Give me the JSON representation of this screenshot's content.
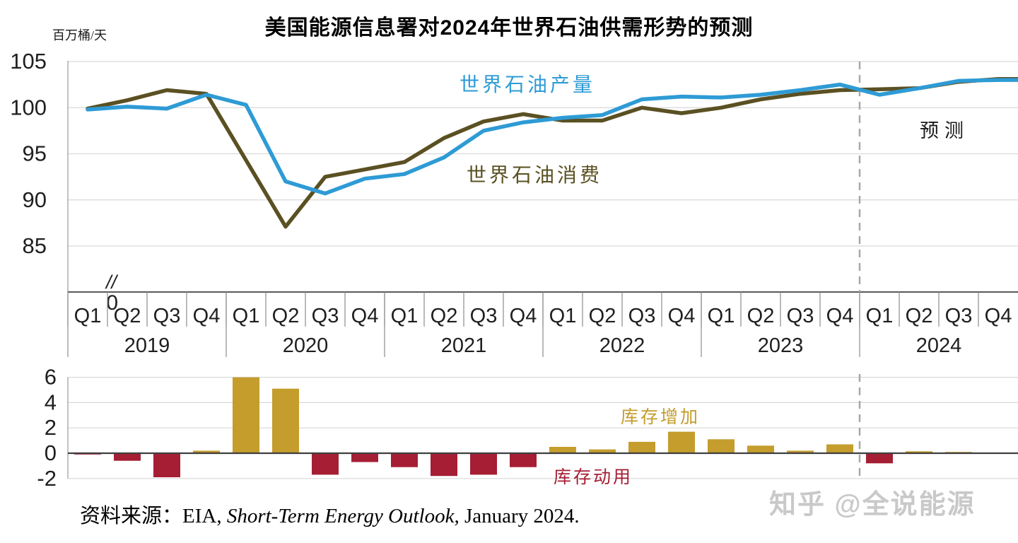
{
  "title": "美国能源信息署对2024年世界石油供需形势的预测",
  "unit_label": "百万桶/天",
  "watermark": "知乎 @全说能源",
  "source": {
    "prefix": "资料来源：EIA, ",
    "italic": "Short-Term Energy Outlook,",
    "suffix": " January 2024."
  },
  "x_axis": {
    "quarter_labels": [
      "Q1",
      "Q2",
      "Q3",
      "Q4"
    ],
    "year_labels": [
      "2019",
      "2020",
      "2021",
      "2022",
      "2023",
      "2024"
    ]
  },
  "chart_data": [
    {
      "type": "line",
      "title": "美国能源信息署对2024年世界石油供需形势的预测",
      "ylabel": "百万桶/天",
      "categories": [
        "2019Q1",
        "2019Q2",
        "2019Q3",
        "2019Q4",
        "2020Q1",
        "2020Q2",
        "2020Q3",
        "2020Q4",
        "2021Q1",
        "2021Q2",
        "2021Q3",
        "2021Q4",
        "2022Q1",
        "2022Q2",
        "2022Q3",
        "2022Q4",
        "2023Q1",
        "2023Q2",
        "2023Q3",
        "2023Q4",
        "2024Q1",
        "2024Q2",
        "2024Q3",
        "2024Q4"
      ],
      "yticks": [
        105,
        100,
        95,
        90,
        85
      ],
      "axis_break_marker": "//",
      "axis_break_zero": "0",
      "ylim": [
        85,
        105
      ],
      "grid": true,
      "series": [
        {
          "name": "世界石油产量",
          "color": "#2E9BD5",
          "values": [
            99.8,
            100.1,
            99.9,
            101.4,
            100.3,
            92.0,
            90.7,
            92.3,
            92.8,
            94.6,
            97.5,
            98.4,
            98.9,
            99.2,
            100.9,
            101.2,
            101.1,
            101.4,
            101.9,
            102.5,
            101.4,
            102.1,
            102.9,
            103.0
          ]
        },
        {
          "name": "世界石油消费",
          "color": "#5A5022",
          "values": [
            99.9,
            100.8,
            101.9,
            101.5,
            94.3,
            87.1,
            92.5,
            93.3,
            94.1,
            96.7,
            98.5,
            99.3,
            98.6,
            98.6,
            100.0,
            99.4,
            100.0,
            100.9,
            101.5,
            101.9,
            102.0,
            102.1,
            102.8,
            103.1
          ]
        }
      ],
      "forecast_divider_after": "2023Q4",
      "forecast_label": "预测"
    },
    {
      "type": "bar",
      "categories": [
        "2019Q1",
        "2019Q2",
        "2019Q3",
        "2019Q4",
        "2020Q1",
        "2020Q2",
        "2020Q3",
        "2020Q4",
        "2021Q1",
        "2021Q2",
        "2021Q3",
        "2021Q4",
        "2022Q1",
        "2022Q2",
        "2022Q3",
        "2022Q4",
        "2023Q1",
        "2023Q2",
        "2023Q3",
        "2023Q4",
        "2024Q1",
        "2024Q2",
        "2024Q3",
        "2024Q4"
      ],
      "values": [
        -0.1,
        -0.6,
        -1.9,
        0.2,
        6.0,
        5.1,
        -1.7,
        -0.7,
        -1.1,
        -1.8,
        -1.7,
        -1.1,
        0.5,
        0.3,
        0.9,
        1.7,
        1.1,
        0.6,
        0.2,
        0.7,
        -0.8,
        0.15,
        0.1,
        0.05
      ],
      "yticks": [
        6,
        4,
        2,
        0,
        -2
      ],
      "ylim": [
        -2,
        6
      ],
      "grid": true,
      "positive": {
        "label": "库存增加",
        "color": "#C49D2D"
      },
      "negative": {
        "label": "库存动用",
        "color": "#A51E34"
      },
      "forecast_divider_after": "2023Q4"
    }
  ]
}
